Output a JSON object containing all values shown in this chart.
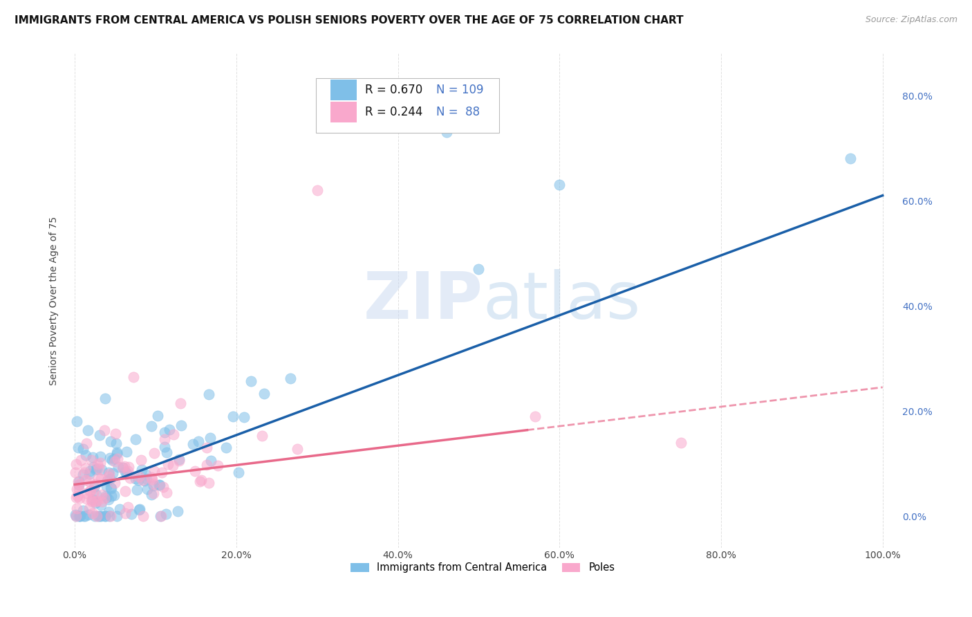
{
  "title": "IMMIGRANTS FROM CENTRAL AMERICA VS POLISH SENIORS POVERTY OVER THE AGE OF 75 CORRELATION CHART",
  "source": "Source: ZipAtlas.com",
  "xlabel": "",
  "ylabel": "Seniors Poverty Over the Age of 75",
  "xlim": [
    -0.01,
    1.02
  ],
  "ylim": [
    -0.06,
    0.88
  ],
  "xticks": [
    0.0,
    0.2,
    0.4,
    0.6,
    0.8,
    1.0
  ],
  "xtick_labels": [
    "0.0%",
    "20.0%",
    "40.0%",
    "60.0%",
    "80.0%",
    "100.0%"
  ],
  "yticks": [
    0.0,
    0.2,
    0.4,
    0.6,
    0.8
  ],
  "ytick_labels": [
    "0.0%",
    "20.0%",
    "40.0%",
    "60.0%",
    "80.0%"
  ],
  "legend_r1": "R = 0.670",
  "legend_n1": "N = 109",
  "legend_r2": "R = 0.244",
  "legend_n2": "N =  88",
  "series1_color": "#7fbfe8",
  "series2_color": "#f9a8cc",
  "trendline1_color": "#1a5fa8",
  "trendline2_color": "#e8698a",
  "trendline2_dashed_color": "#e8698a",
  "watermark_color": "#c8d8f0",
  "background_color": "#ffffff",
  "grid_color": "#e0e0e0",
  "series1_name": "Immigrants from Central America",
  "series2_name": "Poles",
  "series1_R": 0.67,
  "series2_R": 0.244,
  "series1_N": 109,
  "series2_N": 88,
  "title_fontsize": 11,
  "axis_label_fontsize": 10,
  "tick_fontsize": 10,
  "legend_fontsize": 12,
  "source_fontsize": 9,
  "trendline1_slope": 0.57,
  "trendline1_intercept": 0.04,
  "trendline2_slope": 0.185,
  "trendline2_intercept": 0.06
}
